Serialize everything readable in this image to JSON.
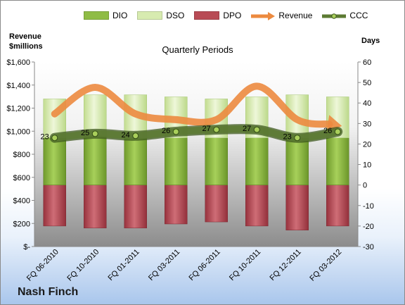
{
  "legend": [
    "DIO",
    "DSO",
    "DPO",
    "Revenue",
    "CCC"
  ],
  "left_axis_title_line1": "Revenue",
  "left_axis_title_line2": "$millions",
  "right_axis_title": "Days",
  "plot_title": "Quarterly Periods",
  "company": "Nash Finch",
  "colors": {
    "dio": "#8fbc45",
    "dso": "#d7ebb0",
    "dpo": "#b84b55",
    "revenue": "#ec8a3f",
    "ccc": "#5c7a32"
  },
  "chart_data": {
    "type": "bar",
    "title": "Quarterly Periods",
    "categories": [
      "FQ 06-2010",
      "FQ 10-2010",
      "FQ 01-2011",
      "FQ 03-2011",
      "FQ 06-2011",
      "FQ 10-2011",
      "FQ 12-2011",
      "FQ 03-2012"
    ],
    "left_axis": {
      "label": "Revenue $millions",
      "min": 0,
      "max": 1600,
      "ticks": [
        "$-",
        "$200",
        "$400",
        "$600",
        "$800",
        "$1,000",
        "$1,200",
        "$1,400",
        "$1,600"
      ]
    },
    "right_axis": {
      "label": "Days",
      "min": -30,
      "max": 60,
      "ticks": [
        "-30",
        "-20",
        "-10",
        "0",
        "10",
        "20",
        "30",
        "40",
        "50",
        "60"
      ]
    },
    "series": [
      {
        "name": "DIO",
        "kind": "stacked-bar-days",
        "values": [
          23,
          24,
          23,
          23,
          23,
          23,
          23,
          23
        ]
      },
      {
        "name": "DSO",
        "kind": "stacked-bar-days",
        "values": [
          19,
          20,
          21,
          20,
          19,
          20,
          21,
          20
        ]
      },
      {
        "name": "DPO",
        "kind": "bar-below-zero-days",
        "values": [
          -20,
          -21,
          -21,
          -19,
          -18,
          -20,
          -22,
          -20
        ]
      },
      {
        "name": "Revenue",
        "kind": "line-left-axis",
        "values": [
          1150,
          1380,
          1150,
          1100,
          1100,
          1390,
          1100,
          1050
        ]
      },
      {
        "name": "CCC",
        "kind": "line-days",
        "values": [
          23,
          25,
          24,
          26,
          27,
          27,
          23,
          26
        ]
      }
    ],
    "data_labels": [
      "23",
      "25",
      "24",
      "26",
      "27",
      "27",
      "23",
      "26"
    ]
  }
}
